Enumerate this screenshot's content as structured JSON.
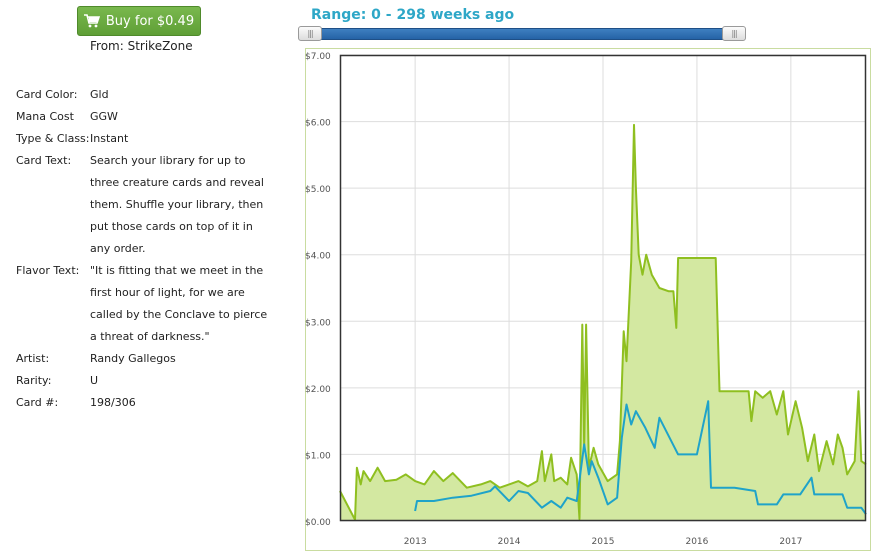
{
  "buy_button": {
    "label": "Buy for $0.49",
    "icon": "shopping-cart-icon"
  },
  "source": "From: StrikeZone",
  "attributes": [
    {
      "label": "Card Color:",
      "value": "Gld"
    },
    {
      "label": "Mana Cost",
      "value": "GGW"
    },
    {
      "label": "Type & Class:",
      "value": "Instant"
    },
    {
      "label": "Card Text:",
      "value": "Search your library for up to three creature cards and reveal them. Shuffle your library, then put those cards on top of it in any order."
    },
    {
      "label": "Flavor Text:",
      "value": "\"It is fitting that we meet in the first hour of light, for we are called by the Conclave to pierce a threat of darkness.\""
    },
    {
      "label": "Artist:",
      "value": "Randy Gallegos"
    },
    {
      "label": "Rarity:",
      "value": "U"
    },
    {
      "label": "Card #:",
      "value": "198/306"
    }
  ],
  "range_label": "Range: 0 - 298 weeks ago",
  "slider": {
    "handle_glyph": "|||",
    "min_weeks_ago": 0,
    "max_weeks_ago": 298
  },
  "colors": {
    "green_line": "#8fbf20",
    "green_fill": "#d3e8a1",
    "blue_line": "#1fa3c9",
    "button": "#6aab42",
    "range_text": "#2ea7c7"
  },
  "chart_data": {
    "type": "area",
    "title": "",
    "xlabel": "",
    "ylabel": "",
    "ylim": [
      0,
      7
    ],
    "xlim": [
      2012.2,
      2017.8
    ],
    "grid": true,
    "y_ticks": [
      "$0.00",
      "$1.00",
      "$2.00",
      "$3.00",
      "$4.00",
      "$5.00",
      "$6.00",
      "$7.00"
    ],
    "y_tick_values": [
      0,
      1,
      2,
      3,
      4,
      5,
      6,
      7
    ],
    "x_ticks": [
      "2013",
      "2014",
      "2015",
      "2016",
      "2017"
    ],
    "x_tick_values": [
      2013,
      2014,
      2015,
      2016,
      2017
    ],
    "series": [
      {
        "style": "filled-line",
        "color": "#8fbf20",
        "fill": "#d3e8a1",
        "points": [
          [
            2012.2,
            0.45
          ],
          [
            2012.36,
            0.02
          ],
          [
            2012.38,
            0.8
          ],
          [
            2012.42,
            0.55
          ],
          [
            2012.45,
            0.75
          ],
          [
            2012.52,
            0.6
          ],
          [
            2012.6,
            0.8
          ],
          [
            2012.68,
            0.6
          ],
          [
            2012.8,
            0.62
          ],
          [
            2012.9,
            0.7
          ],
          [
            2013.0,
            0.6
          ],
          [
            2013.1,
            0.55
          ],
          [
            2013.2,
            0.75
          ],
          [
            2013.3,
            0.6
          ],
          [
            2013.4,
            0.72
          ],
          [
            2013.55,
            0.5
          ],
          [
            2013.7,
            0.55
          ],
          [
            2013.8,
            0.6
          ],
          [
            2013.9,
            0.5
          ],
          [
            2014.0,
            0.55
          ],
          [
            2014.1,
            0.6
          ],
          [
            2014.2,
            0.52
          ],
          [
            2014.3,
            0.6
          ],
          [
            2014.35,
            1.05
          ],
          [
            2014.38,
            0.6
          ],
          [
            2014.45,
            1.0
          ],
          [
            2014.48,
            0.6
          ],
          [
            2014.55,
            0.65
          ],
          [
            2014.62,
            0.55
          ],
          [
            2014.66,
            0.95
          ],
          [
            2014.72,
            0.7
          ],
          [
            2014.75,
            0.03
          ],
          [
            2014.78,
            2.95
          ],
          [
            2014.8,
            1.1
          ],
          [
            2014.82,
            2.95
          ],
          [
            2014.85,
            0.8
          ],
          [
            2014.9,
            1.1
          ],
          [
            2014.95,
            0.85
          ],
          [
            2015.05,
            0.6
          ],
          [
            2015.15,
            0.7
          ],
          [
            2015.18,
            1.2
          ],
          [
            2015.22,
            2.85
          ],
          [
            2015.25,
            2.4
          ],
          [
            2015.3,
            3.9
          ],
          [
            2015.33,
            5.95
          ],
          [
            2015.35,
            5.0
          ],
          [
            2015.38,
            4.0
          ],
          [
            2015.42,
            3.7
          ],
          [
            2015.46,
            4.0
          ],
          [
            2015.52,
            3.7
          ],
          [
            2015.6,
            3.5
          ],
          [
            2015.7,
            3.45
          ],
          [
            2015.75,
            3.45
          ],
          [
            2015.78,
            2.9
          ],
          [
            2015.8,
            3.95
          ],
          [
            2016.0,
            3.95
          ],
          [
            2016.2,
            3.95
          ],
          [
            2016.24,
            1.95
          ],
          [
            2016.4,
            1.95
          ],
          [
            2016.55,
            1.95
          ],
          [
            2016.58,
            1.5
          ],
          [
            2016.62,
            1.95
          ],
          [
            2016.7,
            1.85
          ],
          [
            2016.78,
            1.95
          ],
          [
            2016.85,
            1.6
          ],
          [
            2016.92,
            1.95
          ],
          [
            2016.97,
            1.3
          ],
          [
            2017.05,
            1.8
          ],
          [
            2017.12,
            1.4
          ],
          [
            2017.18,
            0.9
          ],
          [
            2017.25,
            1.3
          ],
          [
            2017.3,
            0.75
          ],
          [
            2017.38,
            1.2
          ],
          [
            2017.45,
            0.85
          ],
          [
            2017.5,
            1.3
          ],
          [
            2017.55,
            1.1
          ],
          [
            2017.6,
            0.7
          ],
          [
            2017.68,
            0.9
          ],
          [
            2017.72,
            1.95
          ],
          [
            2017.75,
            0.9
          ],
          [
            2017.8,
            0.85
          ]
        ]
      },
      {
        "style": "line",
        "color": "#1fa3c9",
        "points": [
          [
            2013.0,
            0.15
          ],
          [
            2013.02,
            0.3
          ],
          [
            2013.2,
            0.3
          ],
          [
            2013.4,
            0.35
          ],
          [
            2013.6,
            0.38
          ],
          [
            2013.8,
            0.45
          ],
          [
            2013.85,
            0.52
          ],
          [
            2014.0,
            0.3
          ],
          [
            2014.1,
            0.45
          ],
          [
            2014.2,
            0.42
          ],
          [
            2014.35,
            0.2
          ],
          [
            2014.45,
            0.3
          ],
          [
            2014.55,
            0.2
          ],
          [
            2014.62,
            0.35
          ],
          [
            2014.72,
            0.3
          ],
          [
            2014.8,
            1.15
          ],
          [
            2014.85,
            0.7
          ],
          [
            2014.88,
            0.9
          ],
          [
            2014.95,
            0.65
          ],
          [
            2015.05,
            0.25
          ],
          [
            2015.15,
            0.35
          ],
          [
            2015.2,
            1.25
          ],
          [
            2015.25,
            1.75
          ],
          [
            2015.3,
            1.45
          ],
          [
            2015.35,
            1.65
          ],
          [
            2015.45,
            1.4
          ],
          [
            2015.55,
            1.1
          ],
          [
            2015.6,
            1.55
          ],
          [
            2015.8,
            1.0
          ],
          [
            2016.0,
            1.0
          ],
          [
            2016.12,
            1.8
          ],
          [
            2016.15,
            0.5
          ],
          [
            2016.4,
            0.5
          ],
          [
            2016.62,
            0.45
          ],
          [
            2016.65,
            0.25
          ],
          [
            2016.85,
            0.25
          ],
          [
            2016.92,
            0.4
          ],
          [
            2017.1,
            0.4
          ],
          [
            2017.22,
            0.65
          ],
          [
            2017.25,
            0.4
          ],
          [
            2017.55,
            0.4
          ],
          [
            2017.6,
            0.2
          ],
          [
            2017.75,
            0.2
          ],
          [
            2017.8,
            0.1
          ]
        ]
      }
    ]
  }
}
